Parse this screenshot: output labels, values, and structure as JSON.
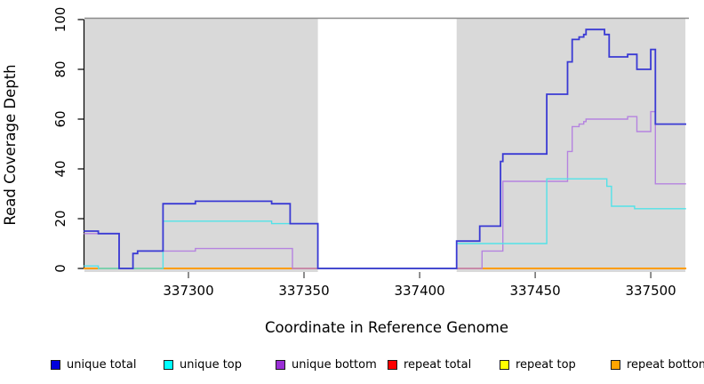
{
  "chart_data": {
    "type": "line",
    "step": true,
    "title": "",
    "xlabel": "Coordinate in Reference Genome",
    "ylabel": "Read Coverage Depth",
    "xlim": [
      337255,
      337516.5
    ],
    "ylim": [
      0,
      100
    ],
    "x_ticks": [
      337300,
      337350,
      337400,
      337450,
      337500
    ],
    "y_ticks": [
      0,
      20,
      40,
      60,
      80,
      100
    ],
    "grid": false,
    "legend_position": "bottom",
    "plot_background": "#ffffff",
    "coverage_band_color": "#d9d9d9",
    "coverage_bands": [
      [
        337255,
        337356
      ],
      [
        337416,
        337515
      ]
    ],
    "uncovered_gap": [
      337356,
      337416
    ],
    "axis_color": "#000000",
    "box_top_color": "#8c8c8c",
    "series": [
      {
        "name": "repeat total",
        "color": "#e03030",
        "width": 1.4,
        "points": [
          [
            337255,
            0
          ],
          [
            337515,
            0
          ]
        ]
      },
      {
        "name": "repeat top",
        "color": "#ffff00",
        "width": 1.4,
        "points": [
          [
            337255,
            0
          ],
          [
            337515,
            0
          ]
        ]
      },
      {
        "name": "repeat bottom",
        "color": "#ff9d00",
        "width": 2,
        "points": [
          [
            337255,
            0
          ],
          [
            337515,
            0
          ]
        ]
      },
      {
        "name": "unique bottom",
        "color": "#b583e0",
        "width": 1.4,
        "points": [
          [
            337255,
            14
          ],
          [
            337270,
            0
          ],
          [
            337276,
            6
          ],
          [
            337278,
            7
          ],
          [
            337303,
            8
          ],
          [
            337345,
            0
          ],
          [
            337427,
            7
          ],
          [
            337436,
            35
          ],
          [
            337464,
            47
          ],
          [
            337466,
            57
          ],
          [
            337469,
            58
          ],
          [
            337471,
            59
          ],
          [
            337472,
            60
          ],
          [
            337490,
            61
          ],
          [
            337494,
            55
          ],
          [
            337500,
            63
          ],
          [
            337502,
            34
          ],
          [
            337515,
            34
          ]
        ]
      },
      {
        "name": "unique top",
        "color": "#52e2e8",
        "width": 1.4,
        "points": [
          [
            337255,
            1
          ],
          [
            337261,
            0
          ],
          [
            337289,
            19
          ],
          [
            337336,
            18
          ],
          [
            337356,
            0
          ],
          [
            337416,
            10
          ],
          [
            337455,
            36
          ],
          [
            337481,
            33
          ],
          [
            337483,
            25
          ],
          [
            337493,
            24
          ],
          [
            337515,
            24
          ]
        ]
      },
      {
        "name": "unique total",
        "color": "#3a3ad4",
        "width": 1.8,
        "points": [
          [
            337255,
            15
          ],
          [
            337261,
            14
          ],
          [
            337270,
            0
          ],
          [
            337276,
            6
          ],
          [
            337278,
            7
          ],
          [
            337289,
            26
          ],
          [
            337303,
            27
          ],
          [
            337336,
            26
          ],
          [
            337344,
            18
          ],
          [
            337356,
            0
          ],
          [
            337416,
            11
          ],
          [
            337426,
            17
          ],
          [
            337435,
            43
          ],
          [
            337436,
            46
          ],
          [
            337455,
            70
          ],
          [
            337464,
            83
          ],
          [
            337466,
            92
          ],
          [
            337469,
            93
          ],
          [
            337471,
            94
          ],
          [
            337472,
            96
          ],
          [
            337480,
            94
          ],
          [
            337482,
            85
          ],
          [
            337490,
            86
          ],
          [
            337494,
            80
          ],
          [
            337500,
            88
          ],
          [
            337502,
            58
          ],
          [
            337515,
            58
          ]
        ]
      }
    ],
    "legend": [
      {
        "label": "unique total",
        "color": "#0000dd"
      },
      {
        "label": "unique top",
        "color": "#00ffff"
      },
      {
        "label": "unique bottom",
        "color": "#9a2fd6"
      },
      {
        "label": "repeat total",
        "color": "#ff0000"
      },
      {
        "label": "repeat top",
        "color": "#ffff00"
      },
      {
        "label": "repeat bottom",
        "color": "#ffa500"
      }
    ]
  }
}
